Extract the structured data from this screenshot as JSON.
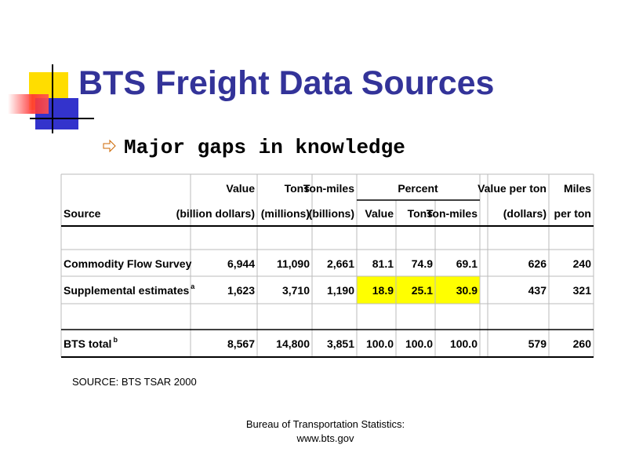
{
  "title": "BTS Freight Data Sources",
  "bullet": "Major gaps in knowledge",
  "table": {
    "header_top": [
      "Value",
      "Tons",
      "Ton-miles",
      "Percent",
      "Value per ton",
      "Miles"
    ],
    "header_bottom": [
      "Source",
      "(billion dollars)",
      "(millions)",
      "(billions)",
      "Value",
      "Tons",
      "Ton-miles",
      "(dollars)",
      "per ton"
    ],
    "rows": [
      {
        "source": "Commodity Flow Survey",
        "cells": [
          "6,944",
          "11,090",
          "2,661",
          "81.1",
          "74.9",
          "69.1",
          "626",
          "240"
        ]
      },
      {
        "source": "Supplemental estimates",
        "note": "a",
        "cells": [
          "1,623",
          "3,710",
          "1,190",
          "18.9",
          "25.1",
          "30.9",
          "437",
          "321"
        ]
      },
      {
        "source": "BTS total",
        "note": "b",
        "cells": [
          "8,567",
          "14,800",
          "3,851",
          "100.0",
          "100.0",
          "100.0",
          "579",
          "260"
        ]
      }
    ]
  },
  "source_note": "SOURCE: BTS TSAR 2000",
  "footer": [
    "Bureau of Transportation Statistics:",
    "www.bts.gov"
  ]
}
